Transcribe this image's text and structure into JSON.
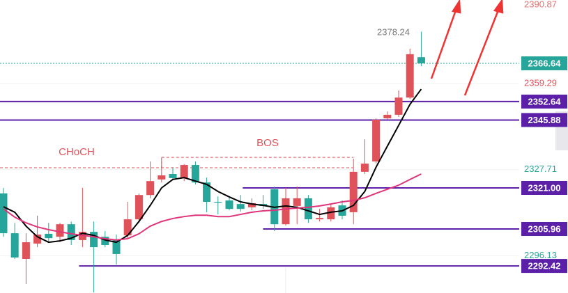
{
  "chart_data": {
    "type": "candlestick",
    "open": [
      2319.0,
      2304.4,
      2295.0,
      2300.6,
      2304.2,
      2303.1,
      2307.7,
      2301.9,
      2304.9,
      2303.1,
      2301.9,
      2303.6,
      2309.5,
      2318.4,
      2324.1,
      2326.1,
      2324.6,
      2329.4,
      2323.0,
      2315.9,
      2316.4,
      2315.1,
      2313.9,
      2315.1,
      2320.5,
      2307.7,
      2314.4,
      2317.2,
      2309.5,
      2309.5,
      2314.6,
      2312.1,
      2326.9,
      2330.7,
      2346.5,
      2347.8,
      2354.1,
      2368.9
    ],
    "high": [
      2321.0,
      2308.2,
      2304.4,
      2310.8,
      2308.2,
      2308.2,
      2308.7,
      2321.0,
      2308.7,
      2305.2,
      2303.9,
      2315.9,
      2319.0,
      2330.7,
      2331.7,
      2328.6,
      2329.7,
      2330.7,
      2324.8,
      2317.9,
      2317.9,
      2318.4,
      2317.2,
      2318.4,
      2321.5,
      2321.0,
      2321.5,
      2318.4,
      2313.3,
      2315.4,
      2316.4,
      2331.7,
      2338.8,
      2346.5,
      2349.0,
      2356.7,
      2372.0,
      2378.24
    ],
    "low": [
      2303.1,
      2295.0,
      2285.8,
      2299.3,
      2301.1,
      2301.1,
      2300.1,
      2299.3,
      2282.7,
      2299.3,
      2292.9,
      2302.6,
      2308.2,
      2317.2,
      2323.0,
      2324.1,
      2323.5,
      2322.3,
      2312.1,
      2311.3,
      2312.8,
      2312.3,
      2312.8,
      2313.3,
      2305.2,
      2307.2,
      2307.7,
      2308.2,
      2308.7,
      2308.7,
      2309.5,
      2307.7,
      2326.1,
      2329.9,
      2346.0,
      2347.0,
      2353.6,
      2365.6
    ],
    "close": [
      2304.4,
      2295.5,
      2301.1,
      2303.9,
      2302.6,
      2307.7,
      2301.9,
      2304.9,
      2299.3,
      2300.1,
      2296.8,
      2309.5,
      2318.4,
      2323.5,
      2325.6,
      2324.6,
      2329.4,
      2323.0,
      2315.9,
      2315.6,
      2313.3,
      2313.3,
      2315.4,
      2314.4,
      2307.7,
      2317.2,
      2317.2,
      2309.5,
      2310.0,
      2313.9,
      2310.8,
      2326.9,
      2329.9,
      2346.0,
      2347.8,
      2354.1,
      2370.0,
      2366.64
    ],
    "up_color": "#e0525a",
    "down_color": "#26a69a",
    "series": [
      {
        "color": "#000000",
        "values": [
          2314.1,
          2312.1,
          2307.0,
          2303.1,
          2301.1,
          2301.6,
          2302.6,
          2304.4,
          2303.6,
          2301.9,
          2301.1,
          2303.6,
          2308.7,
          2314.6,
          2321.0,
          2324.1,
          2324.8,
          2323.5,
          2322.3,
          2319.7,
          2317.7,
          2315.9,
          2315.1,
          2314.6,
          2313.9,
          2314.4,
          2313.9,
          2312.6,
          2311.3,
          2312.1,
          2312.6,
          2314.6,
          2319.7,
          2328.6,
          2336.3,
          2343.9,
          2351.6,
          2357.2
        ]
      },
      {
        "color": "#e0357a",
        "values": [
          2313.3,
          2310.3,
          2308.2,
          2306.7,
          2305.7,
          2304.9,
          2304.2,
          2303.6,
          2303.1,
          2302.4,
          2301.9,
          2302.4,
          2304.2,
          2307.0,
          2308.7,
          2309.8,
          2310.5,
          2311.0,
          2311.0,
          2310.5,
          2310.5,
          2311.3,
          2312.1,
          2312.6,
          2312.8,
          2313.3,
          2313.6,
          2313.9,
          2314.4,
          2315.1,
          2315.9,
          2316.4,
          2317.4,
          2319.0,
          2320.5,
          2322.0,
          2324.1,
          2326.1
        ]
      }
    ],
    "ylim": [
      2282.5,
      2389.85
    ],
    "yticks": [
      2390.87,
      2359.29,
      2327.71,
      2296.13
    ],
    "ytick_colors": [
      "#e57373",
      "#e0525a",
      "#26a69a",
      "#26a69a"
    ],
    "grid": true,
    "levels": [
      {
        "value": 2366.64,
        "color": "#26a69a",
        "style": "dotted"
      },
      {
        "value": 2352.64,
        "color": "#5b1fa8",
        "style": "solid"
      },
      {
        "value": 2345.88,
        "color": "#5b1fa8",
        "style": "solid"
      },
      {
        "value": 2321,
        "label": "2321.00",
        "color": "#5b1fa8",
        "style": "solid"
      },
      {
        "value": 2305.96,
        "color": "#5b1fa8",
        "style": "solid"
      },
      {
        "value": 2292.42,
        "color": "#5b1fa8",
        "style": "solid"
      }
    ],
    "structure_levels": [
      2328.4,
      2332.2
    ],
    "annotations": [
      "CHoCH",
      "BOS",
      "2378.24"
    ]
  }
}
